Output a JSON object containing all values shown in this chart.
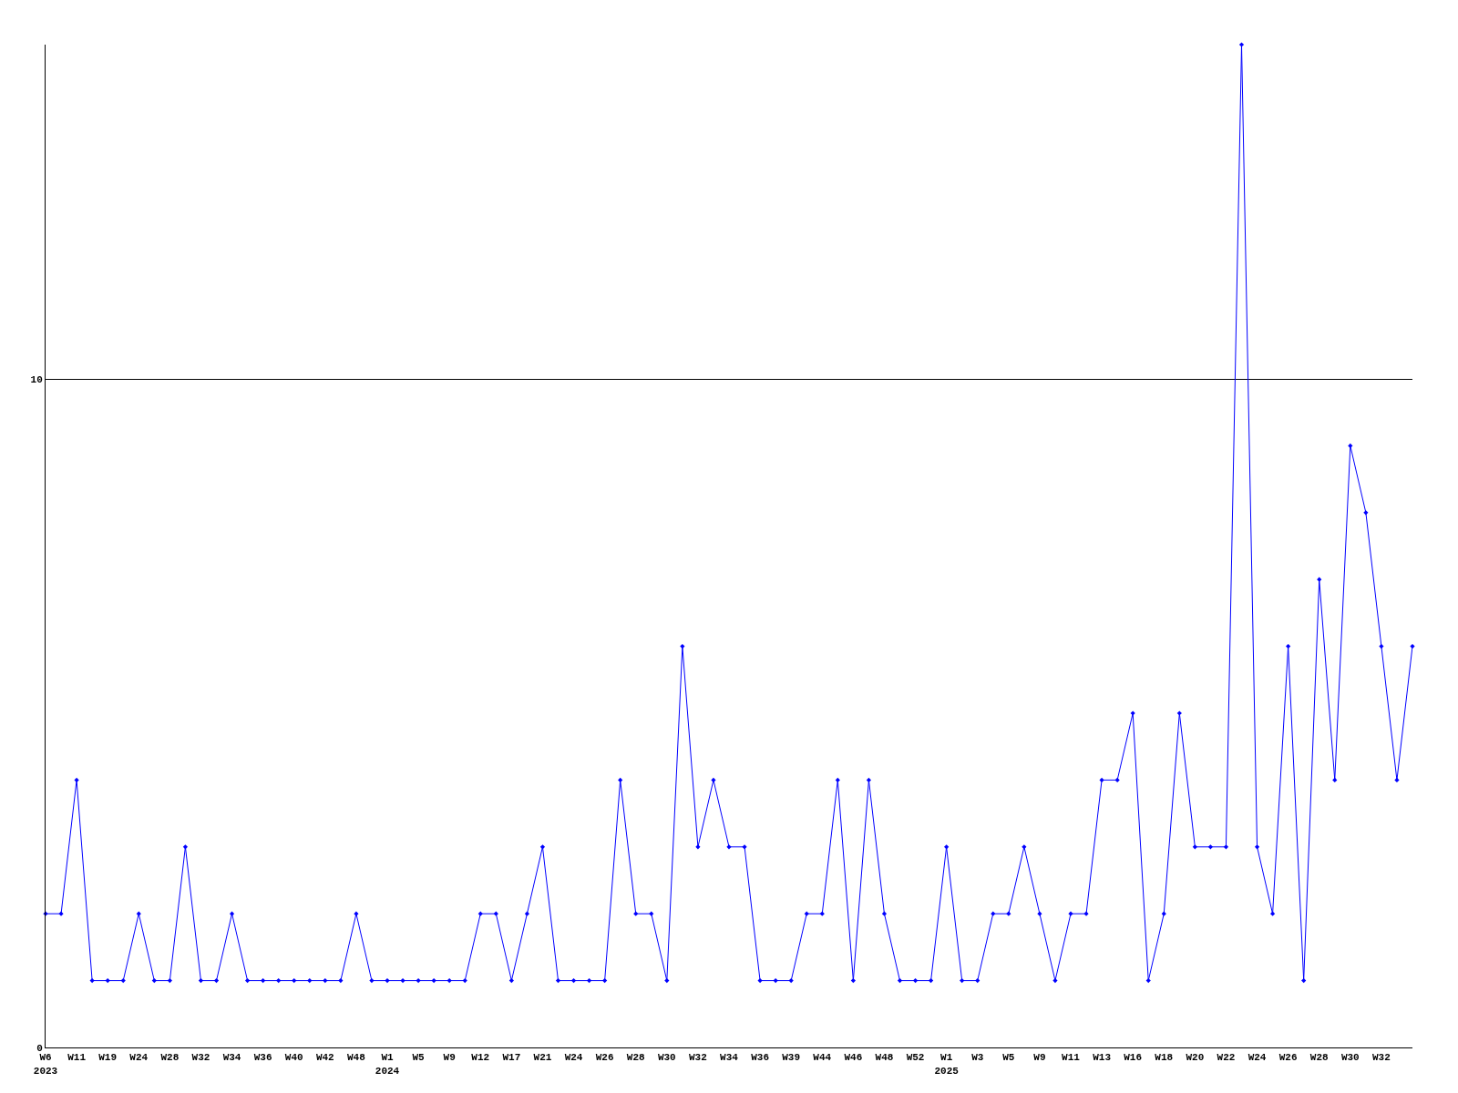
{
  "chart_data": {
    "type": "line",
    "categories": [
      "W6\n2023",
      null,
      "W11",
      null,
      "W19",
      null,
      "W24",
      null,
      "W28",
      null,
      "W32",
      null,
      "W34",
      null,
      "W36",
      null,
      "W40",
      null,
      "W42",
      null,
      "W48",
      null,
      "W1\n2024",
      null,
      "W5",
      null,
      "W9",
      null,
      "W12",
      null,
      "W17",
      null,
      "W21",
      null,
      "W24",
      null,
      "W26",
      null,
      "W28",
      null,
      "W30",
      null,
      "W32",
      null,
      "W34",
      null,
      "W36",
      null,
      "W39",
      null,
      "W44",
      null,
      "W46",
      null,
      "W48",
      null,
      "W52",
      null,
      "W1\n2025",
      null,
      "W3",
      null,
      "W5",
      null,
      "W9",
      null,
      "W11",
      null,
      "W13",
      null,
      "W16",
      null,
      "W18",
      null,
      "W20",
      null,
      "W22",
      null,
      "W24",
      null,
      "W26",
      null,
      "W28",
      null,
      "W30",
      null,
      "W32",
      null,
      null
    ],
    "series": [
      {
        "color": "#0000ff",
        "values": [
          2,
          2,
          4,
          1,
          1,
          1,
          2,
          1,
          1,
          3,
          1,
          1,
          2,
          1,
          1,
          1,
          1,
          1,
          1,
          1,
          2,
          1,
          1,
          1,
          1,
          1,
          1,
          1,
          2,
          2,
          1,
          2,
          3,
          1,
          1,
          1,
          1,
          4,
          2,
          2,
          1,
          6,
          3,
          4,
          3,
          3,
          1,
          1,
          1,
          2,
          2,
          4,
          1,
          4,
          2,
          1,
          1,
          1,
          3,
          1,
          1,
          2,
          2,
          3,
          2,
          1,
          2,
          2,
          4,
          4,
          5,
          1,
          2,
          5,
          3,
          3,
          3,
          15,
          3,
          2,
          6,
          1,
          7,
          4,
          9,
          8,
          6,
          4,
          6
        ]
      }
    ],
    "ylim": [
      0,
      15
    ],
    "yticks": [
      0,
      10
    ],
    "grid": "y",
    "marker": "diamond",
    "line_style": "solid"
  }
}
